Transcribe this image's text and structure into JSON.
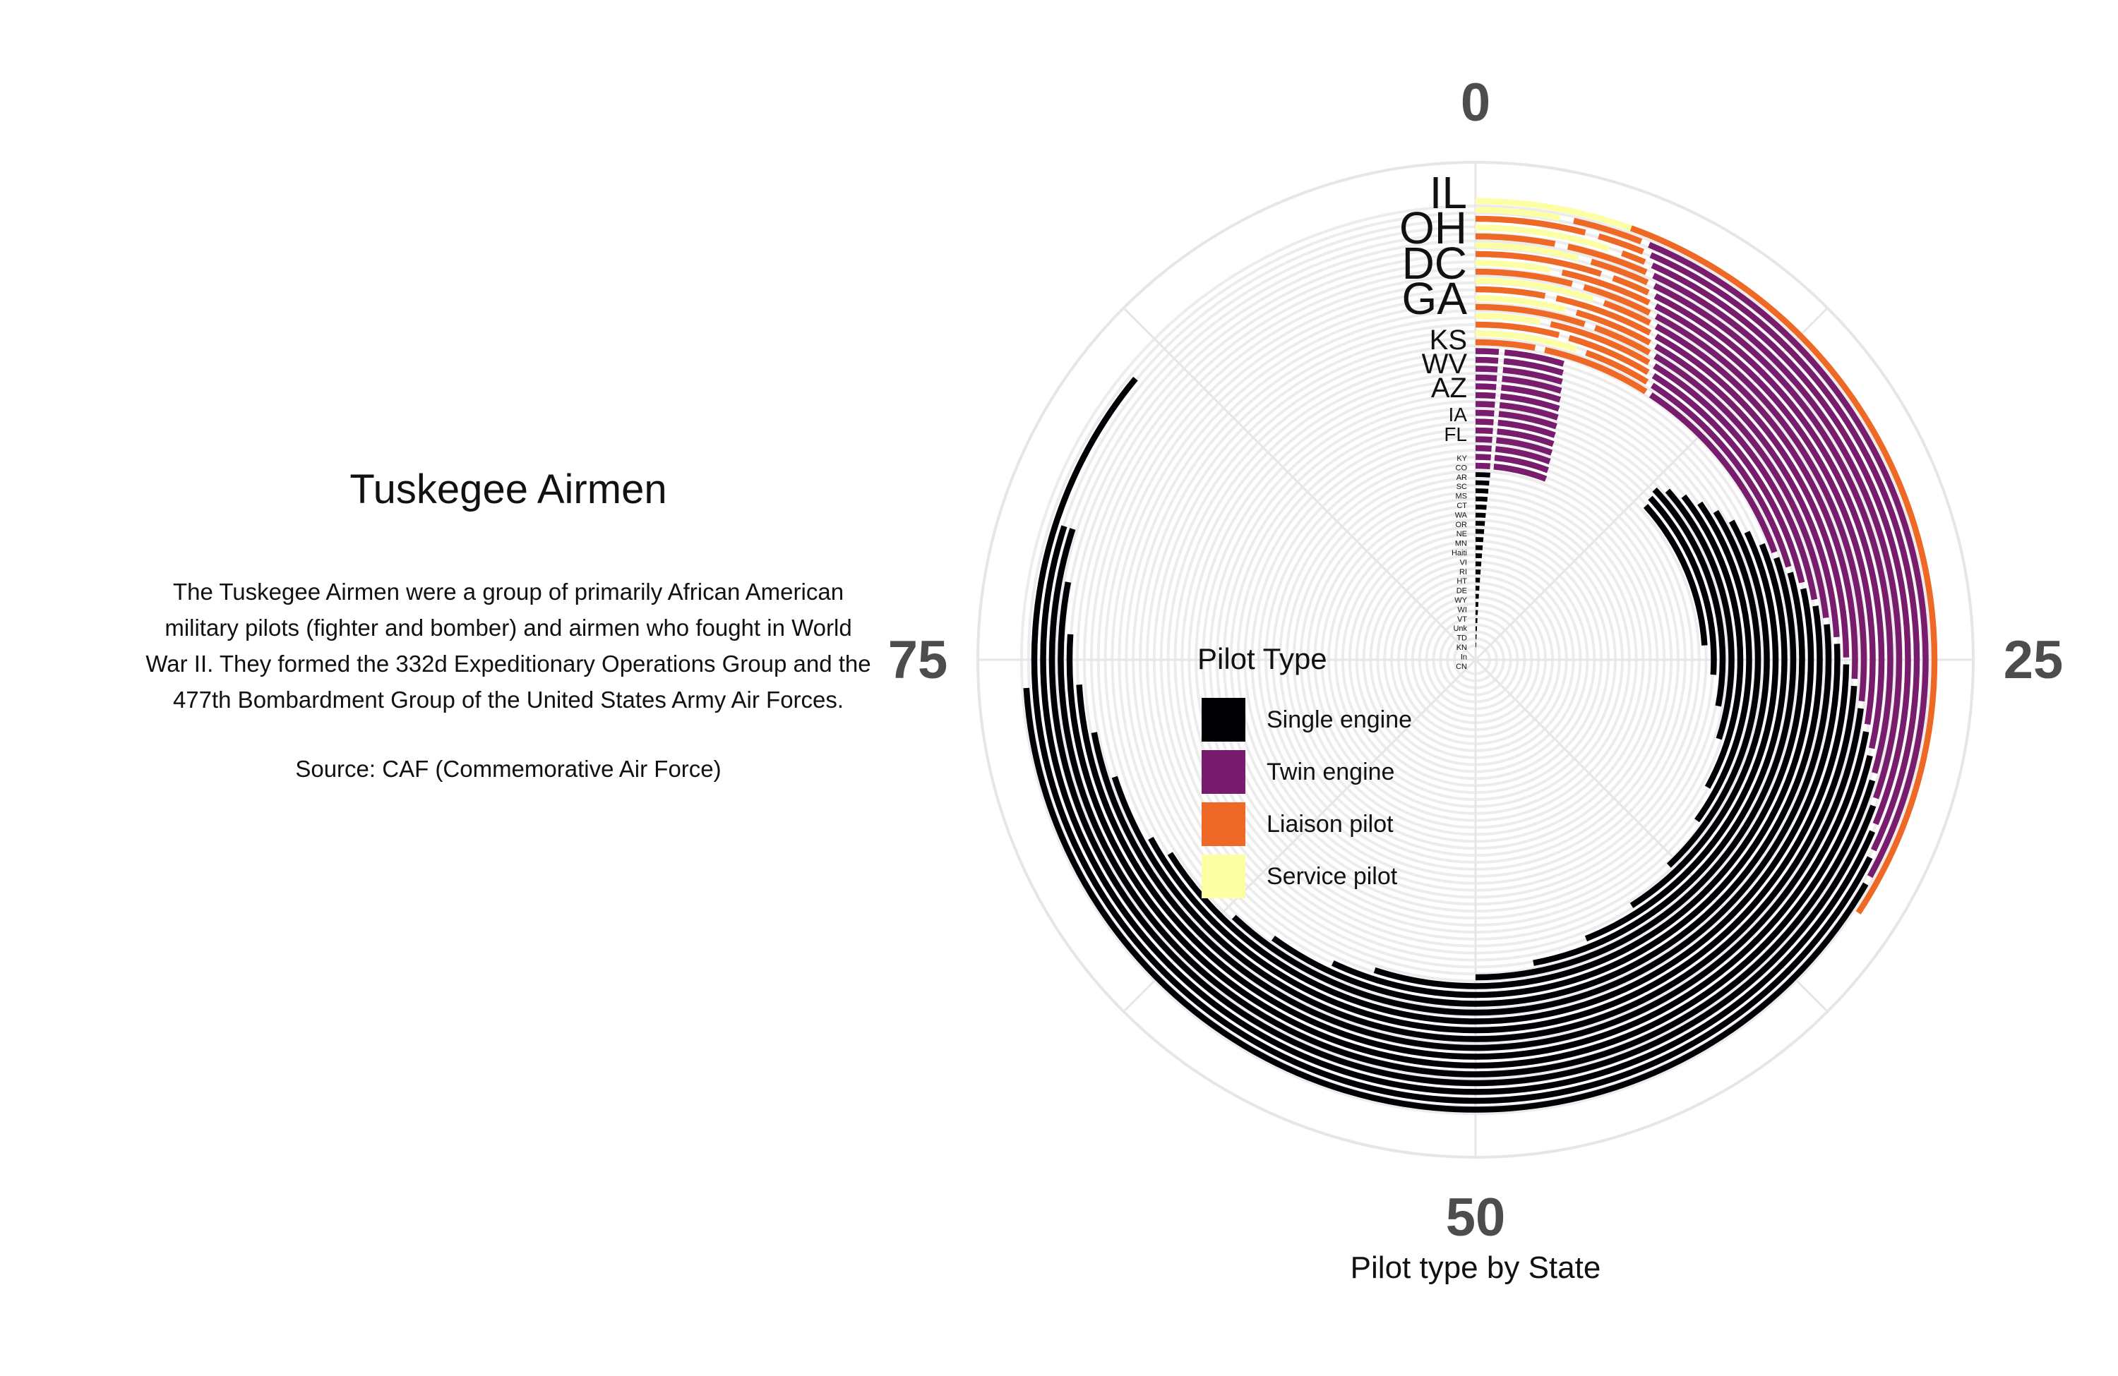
{
  "side": {
    "title": "Tuskegee Airmen",
    "description_lines": [
      "The Tuskegee Airmen were a group of primarily African American",
      "military pilots (fighter and bomber) and airmen who fought in World",
      "War II. They formed the 332d Expeditionary Operations Group and the",
      "477th Bombardment Group of the United States Army Air Forces."
    ],
    "source": "Source: CAF (Commemorative Air Force)"
  },
  "legend": {
    "title": "Pilot Type",
    "items": [
      {
        "label": "Single engine",
        "color": "#000004"
      },
      {
        "label": "Twin engine",
        "color": "#781c6d"
      },
      {
        "label": "Liaison pilot",
        "color": "#ed6925"
      },
      {
        "label": "Service pilot",
        "color": "#fcffa4"
      }
    ]
  },
  "caption": "Pilot type by State",
  "chart_data": {
    "type": "radial-bar",
    "title": "",
    "xlabel": "Pilot type by State",
    "theta_max": 100,
    "theta_ticks": [
      0,
      25,
      50,
      75
    ],
    "grid": true,
    "legend_position": "left-inside",
    "category_labels": [
      {
        "label": "IL",
        "size": "large"
      },
      {
        "label": "OH",
        "size": "large"
      },
      {
        "label": "DC",
        "size": "large"
      },
      {
        "label": "GA",
        "size": "large"
      },
      {
        "label": "KS",
        "size": "medium"
      },
      {
        "label": "WV",
        "size": "medium"
      },
      {
        "label": "AZ",
        "size": "medium"
      },
      {
        "label": "IA",
        "size": "small"
      },
      {
        "label": "FL",
        "size": "small"
      },
      {
        "label": "KY",
        "size": "tiny"
      },
      {
        "label": "CO",
        "size": "tiny"
      },
      {
        "label": "AR",
        "size": "tiny"
      },
      {
        "label": "SC",
        "size": "tiny"
      },
      {
        "label": "MS",
        "size": "tiny"
      },
      {
        "label": "CT",
        "size": "tiny"
      },
      {
        "label": "WA",
        "size": "tiny"
      },
      {
        "label": "OR",
        "size": "tiny"
      },
      {
        "label": "NE",
        "size": "tiny"
      },
      {
        "label": "MN",
        "size": "tiny"
      },
      {
        "label": "Haiti",
        "size": "tiny"
      },
      {
        "label": "VI",
        "size": "tiny"
      },
      {
        "label": "RI",
        "size": "tiny"
      },
      {
        "label": "HT",
        "size": "tiny"
      },
      {
        "label": "DE",
        "size": "tiny"
      },
      {
        "label": "WY",
        "size": "tiny"
      },
      {
        "label": "WI",
        "size": "tiny"
      },
      {
        "label": "VT",
        "size": "tiny"
      },
      {
        "label": "Unk",
        "size": "tiny"
      },
      {
        "label": "TD",
        "size": "tiny"
      },
      {
        "label": "KN",
        "size": "tiny"
      },
      {
        "label": "In",
        "size": "tiny"
      },
      {
        "label": "CN",
        "size": "tiny"
      }
    ],
    "stacked_rings": [
      {
        "se": 0,
        "te": 0,
        "lp": 30,
        "sp": 6
      },
      {
        "se": 0,
        "te": 0,
        "lp": 1,
        "sp": 3
      },
      {
        "se": 0,
        "te": 0,
        "lp": 2,
        "sp": 2
      },
      {
        "se": 0,
        "te": 22,
        "lp": 2,
        "sp": 2
      },
      {
        "se": 0,
        "te": 18,
        "lp": 5,
        "sp": 2
      },
      {
        "se": 0,
        "te": 14,
        "lp": 2,
        "sp": 2
      },
      {
        "se": 0,
        "te": 3,
        "lp": 3,
        "sp": 2
      },
      {
        "se": 0,
        "te": 10,
        "lp": 6,
        "sp": 2
      },
      {
        "se": 0,
        "te": 4,
        "lp": 2,
        "sp": 2
      },
      {
        "se": 0,
        "te": 3,
        "lp": 5,
        "sp": 2
      },
      {
        "se": 0,
        "te": 2,
        "lp": 2,
        "sp": 1
      },
      {
        "se": 0,
        "te": 2,
        "lp": 2,
        "sp": 1
      },
      {
        "se": 0,
        "te": 2,
        "lp": 1,
        "sp": 1
      },
      {
        "se": 0,
        "te": 3,
        "lp": 0,
        "sp": 1
      },
      {
        "se": 0,
        "te": 2,
        "lp": 0,
        "sp": 0
      },
      {
        "se": 0,
        "te": 1.5,
        "lp": 0,
        "sp": 0
      }
    ]
  }
}
